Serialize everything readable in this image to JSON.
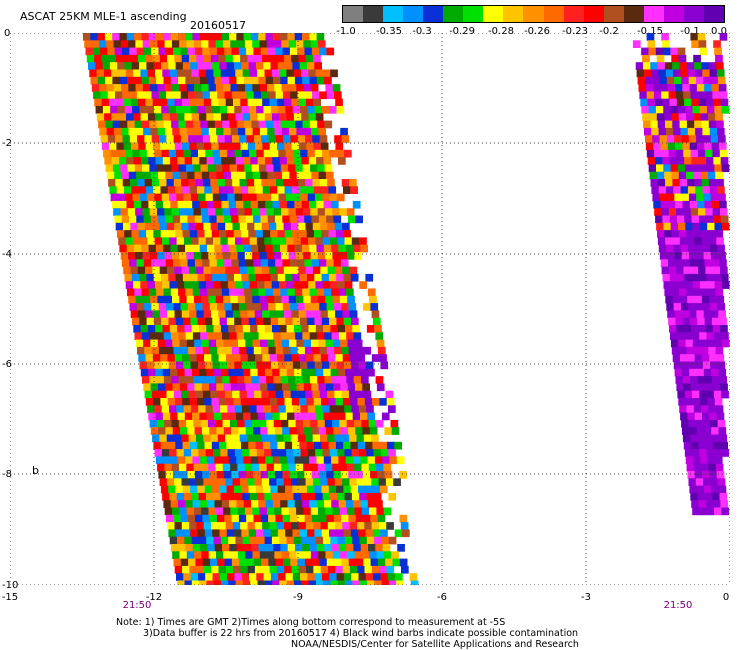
{
  "header": {
    "title": "ASCAT 25KM MLE-1 ascending",
    "date": "20160517"
  },
  "colorbar": {
    "labels": [
      "-1.0",
      "-0.35",
      "-0.3",
      "-0.29",
      "-0.28",
      "-0.26",
      "-0.23",
      "-0.2",
      "-0.15",
      "-0.1",
      "0.0"
    ],
    "colors": [
      "#7f7f7f",
      "#3a3a3a",
      "#00bfff",
      "#0090ff",
      "#0a2fd6",
      "#00aa00",
      "#00e000",
      "#ffff00",
      "#ffc400",
      "#ff9000",
      "#ff6a00",
      "#ff2020",
      "#ff0000",
      "#b05020",
      "#5a2a10",
      "#ff30ff",
      "#c000e0",
      "#8a00d0",
      "#6000b0"
    ]
  },
  "axes": {
    "x_labels": [
      "-15",
      "-12",
      "-9",
      "-6",
      "-3",
      "0"
    ],
    "y_labels": [
      "0",
      "-2",
      "-4",
      "-6",
      "-8",
      "-10"
    ],
    "grid": "dotted",
    "time_labels": [
      "21:50",
      "21:50"
    ],
    "side_marker": "b"
  },
  "notes": [
    "Note: 1) Times are GMT 2)Times along bottom correspond to measurement at -5S",
    "3)Data buffer is 22 hrs from 20160517 4) Black wind barbs indicate possible contamination",
    "NOAA/NESDIS/Center for Satellite Applications and Research"
  ]
}
